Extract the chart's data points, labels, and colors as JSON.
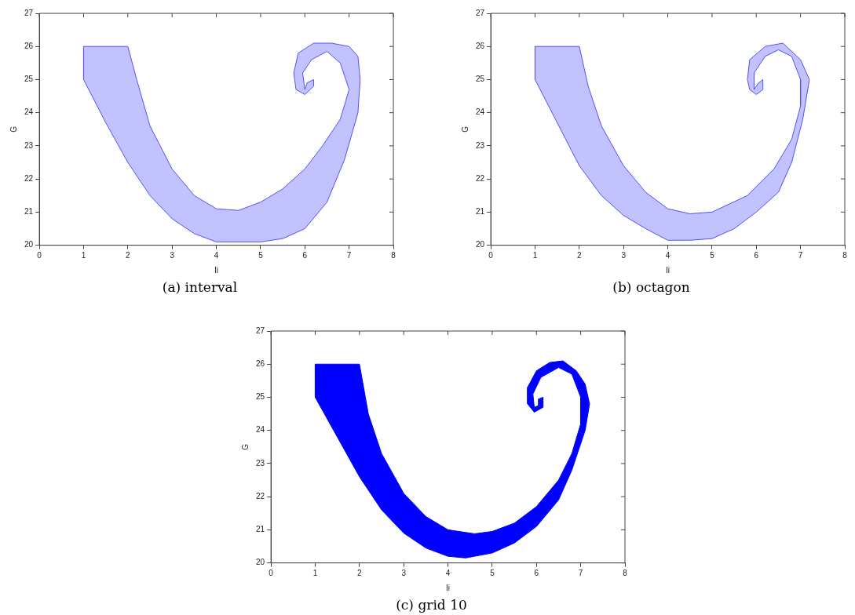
{
  "chart_data": [
    {
      "type": "area",
      "title": "(a) interval",
      "xlabel": "Ii",
      "ylabel": "G",
      "xlim": [
        0,
        8
      ],
      "ylim": [
        20,
        27
      ],
      "xticks": [
        0,
        1,
        2,
        3,
        4,
        5,
        6,
        7,
        8
      ],
      "yticks": [
        20,
        21,
        22,
        23,
        24,
        25,
        26,
        27
      ],
      "grid": false,
      "legend": false,
      "marker": "none",
      "series": [
        {
          "color": "#5050ff",
          "x": [
            1,
            1.5,
            2,
            2.5,
            3,
            3.5,
            4,
            5,
            5.5,
            6,
            6.5,
            6.9,
            7.2,
            7.25,
            7.2,
            7,
            6.6,
            6.2,
            5.85,
            5.75,
            5.8,
            6,
            6.2,
            6.2,
            6.05,
            6,
            5.95,
            6.15,
            6.5,
            6.8,
            7,
            6.8,
            6.4,
            6,
            5.5,
            5,
            4.5,
            4,
            3.5,
            3,
            2.5,
            2.2,
            2,
            1,
            1
          ],
          "values": [
            25,
            23.7,
            22.5,
            21.5,
            20.8,
            20.35,
            20.1,
            20.1,
            20.2,
            20.5,
            21.3,
            22.6,
            24,
            25,
            25.7,
            26,
            26.1,
            26.1,
            25.8,
            25.2,
            24.7,
            24.55,
            24.8,
            25,
            24.9,
            24.7,
            25.2,
            25.6,
            25.85,
            25.5,
            24.7,
            23.8,
            23,
            22.3,
            21.7,
            21.3,
            21.05,
            21.1,
            21.5,
            22.3,
            23.6,
            25,
            26,
            26,
            25
          ]
        }
      ]
    },
    {
      "type": "area",
      "title": "(b) octagon",
      "xlabel": "Ii",
      "ylabel": "G",
      "xlim": [
        0,
        8
      ],
      "ylim": [
        20,
        27
      ],
      "xticks": [
        0,
        1,
        2,
        3,
        4,
        5,
        6,
        7,
        8
      ],
      "yticks": [
        20,
        21,
        22,
        23,
        24,
        25,
        26,
        27
      ],
      "grid": false,
      "legend": false,
      "marker": "none",
      "series": [
        {
          "color": "#5050ff",
          "x": [
            1,
            1.5,
            2,
            2.5,
            3,
            3.5,
            4,
            4.5,
            5,
            5.5,
            6,
            6.5,
            6.8,
            7.05,
            7.2,
            7,
            6.6,
            6.2,
            5.85,
            5.8,
            5.85,
            6,
            6.15,
            6.15,
            6.05,
            5.95,
            5.95,
            6.2,
            6.5,
            6.8,
            7,
            7,
            6.8,
            6.4,
            5.8,
            5,
            4.5,
            4,
            3.5,
            3,
            2.5,
            2.2,
            2,
            1,
            1
          ],
          "values": [
            25,
            23.7,
            22.4,
            21.5,
            20.9,
            20.5,
            20.15,
            20.15,
            20.2,
            20.5,
            21,
            21.6,
            22.5,
            23.8,
            25,
            25.6,
            26.1,
            26,
            25.6,
            25,
            24.7,
            24.55,
            24.7,
            25,
            24.9,
            24.7,
            25.2,
            25.7,
            25.9,
            25.7,
            25,
            24.2,
            23.2,
            22.3,
            21.5,
            21,
            20.95,
            21.1,
            21.6,
            22.4,
            23.6,
            24.8,
            26,
            26,
            25
          ]
        }
      ]
    },
    {
      "type": "area",
      "title": "(c) grid 10",
      "xlabel": "Ii",
      "ylabel": "G",
      "xlim": [
        0,
        8
      ],
      "ylim": [
        20,
        27
      ],
      "xticks": [
        0,
        1,
        2,
        3,
        4,
        5,
        6,
        7,
        8
      ],
      "yticks": [
        20,
        21,
        22,
        23,
        24,
        25,
        26,
        27
      ],
      "grid": false,
      "legend": false,
      "marker": "none",
      "series": [
        {
          "color": "#0000ff",
          "x": [
            1,
            1.5,
            2,
            2.5,
            3,
            3.5,
            4,
            4.4,
            5,
            5.5,
            6,
            6.5,
            6.8,
            7.1,
            7.2,
            7.1,
            6.9,
            6.6,
            6.3,
            6,
            5.8,
            5.8,
            5.95,
            6.15,
            6.15,
            6.05,
            6.05,
            5.95,
            5.92,
            6.1,
            6.5,
            6.8,
            7,
            7,
            6.8,
            6.5,
            6,
            5.5,
            5,
            4.6,
            4,
            3.5,
            3,
            2.5,
            2.2,
            2,
            1,
            1
          ],
          "values": [
            25,
            23.8,
            22.6,
            21.6,
            20.9,
            20.45,
            20.2,
            20.15,
            20.3,
            20.6,
            21.1,
            21.9,
            22.8,
            24,
            24.8,
            25.4,
            25.8,
            26.1,
            26.05,
            25.8,
            25.3,
            24.8,
            24.55,
            24.7,
            25,
            24.95,
            24.75,
            24.7,
            25.1,
            25.6,
            25.9,
            25.7,
            25,
            24.2,
            23.3,
            22.5,
            21.7,
            21.2,
            20.95,
            20.88,
            21,
            21.4,
            22.1,
            23.3,
            24.5,
            26,
            26,
            25
          ]
        }
      ]
    }
  ]
}
